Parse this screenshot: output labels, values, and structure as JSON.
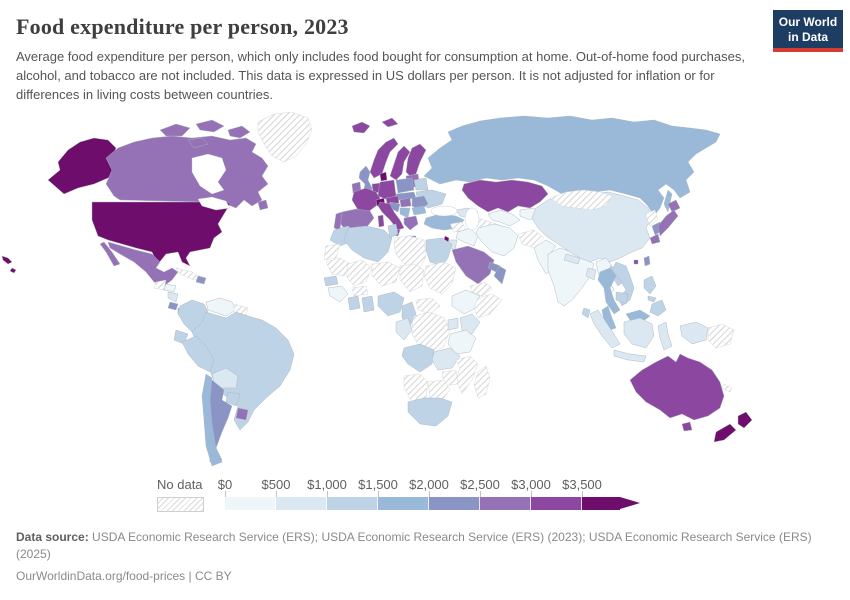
{
  "header": {
    "title": "Food expenditure per person, 2023",
    "subtitle": "Average food expenditure per person, which only includes food bought for consumption at home. Out-of-home food purchases, alcohol, and tobacco are not included. This data is expressed in US dollars per person. It is not adjusted for inflation or for differences in living costs between countries.",
    "logo_line1": "Our World",
    "logo_line2": "in Data",
    "logo_bg": "#1d3d63",
    "logo_accent": "#d73c34"
  },
  "footer": {
    "source_bold": "Data source:",
    "source_text": " USDA Economic Research Service (ERS); USDA Economic Research Service (ERS) (2023); USDA Economic Research Service (ERS) (2025)",
    "license_line": "OurWorldinData.org/food-prices | CC BY"
  },
  "chart_data": {
    "type": "choropleth_map",
    "title": "Food expenditure per person, 2023",
    "unit": "US$ per person, nominal, not adjusted for inflation or living costs",
    "legend": {
      "no_data_label": "No data",
      "tick_labels": [
        "$0",
        "$500",
        "$1,000",
        "$1,500",
        "$2,000",
        "$2,500",
        "$3,000",
        "$3,500"
      ],
      "bins": [
        {
          "range": "$0-$500",
          "color": "#eff6f9"
        },
        {
          "range": "$500-$1,000",
          "color": "#dbe7f1"
        },
        {
          "range": "$1,000-$1,500",
          "color": "#bed3e6"
        },
        {
          "range": "$1,500-$2,000",
          "color": "#9ab9d9"
        },
        {
          "range": "$2,000-$2,500",
          "color": "#8b95c5"
        },
        {
          "range": "$2,500-$3,000",
          "color": "#9572b5"
        },
        {
          "range": "$3,000-$3,500",
          "color": "#8c48a1"
        },
        {
          "range": "$3,500+",
          "color": "#6e0d6b"
        }
      ],
      "no_data_pattern": "diagonal-hatch"
    },
    "regions": {
      "united-states": 8,
      "canada": 6,
      "greenland": 0,
      "mexico": 6,
      "guatemala": 0,
      "honduras": 1,
      "nicaragua": 2,
      "costa-rica": 5,
      "panama": 4,
      "cuba": 0,
      "dominican-republic": 5,
      "colombia": 3,
      "venezuela": 1,
      "guyana": 0,
      "ecuador": 3,
      "peru": 3,
      "brazil": 3,
      "bolivia": 2,
      "paraguay": 3,
      "chile": 4,
      "argentina": 5,
      "uruguay": 6,
      "iceland": 7,
      "united-kingdom": 5,
      "ireland": 6,
      "norway": 7,
      "sweden": 7,
      "finland": 7,
      "denmark": 8,
      "baltic-states": 6,
      "netherlands-belgium": 7,
      "germany": 7,
      "poland": 5,
      "czechia-slovakia": 5,
      "belarus": 3,
      "ukraine": 3,
      "france": 7,
      "switzerland": 8,
      "austria": 7,
      "hungary": 6,
      "romania": 5,
      "bulgaria": 4,
      "serbia-balkans": 4,
      "croatia-bosnia": 5,
      "greece": 6,
      "italy": 7,
      "spain": 6,
      "portugal": 6,
      "russia": 4,
      "kazakhstan": 7,
      "uzbekistan": 1,
      "turkmenistan": 0,
      "kyrgyzstan-tajikistan": 1,
      "caucasus": 2,
      "turkey": 4,
      "syria": 0,
      "iraq": 1,
      "israel": 8,
      "jordan": 2,
      "saudi-arabia": 6,
      "yemen": 0,
      "oman": 5,
      "united-arab-emirates": 5,
      "iran": 1,
      "afghanistan": 0,
      "pakistan": 1,
      "india": 1,
      "nepal": 2,
      "bangladesh": 2,
      "sri-lanka": 3,
      "myanmar": 1,
      "china": 2,
      "mongolia": 0,
      "north-korea": 0,
      "south-korea": 5,
      "japan": 6,
      "taiwan": 5,
      "hong-kong": 7,
      "thailand": 4,
      "laos": 3,
      "vietnam": 3,
      "cambodia": 3,
      "malaysia": 4,
      "indonesia": 2,
      "philippines": 3,
      "papua-new-guinea": 0,
      "morocco": 3,
      "western-sahara": 0,
      "algeria": 3,
      "tunisia": 3,
      "libya": 0,
      "egypt": 3,
      "mauritania": 0,
      "mali": 0,
      "niger": 0,
      "chad": 0,
      "sudan": 0,
      "ethiopia": 1,
      "somalia": 0,
      "senegal": 3,
      "guinea": 1,
      "burkina-faso": 0,
      "ivory-coast": 3,
      "ghana": 3,
      "nigeria": 3,
      "cameroon": 3,
      "central-african-republic": 0,
      "gabon-congo": 2,
      "dr-congo": 0,
      "uganda": 2,
      "kenya": 2,
      "tanzania": 1,
      "angola": 3,
      "zambia": 2,
      "mozambique": 0,
      "zimbabwe": 0,
      "namibia": 0,
      "botswana": 0,
      "south-africa": 3,
      "madagascar": 0,
      "australia": 7,
      "new-zealand": 8,
      "new-caledonia": 0
    }
  }
}
